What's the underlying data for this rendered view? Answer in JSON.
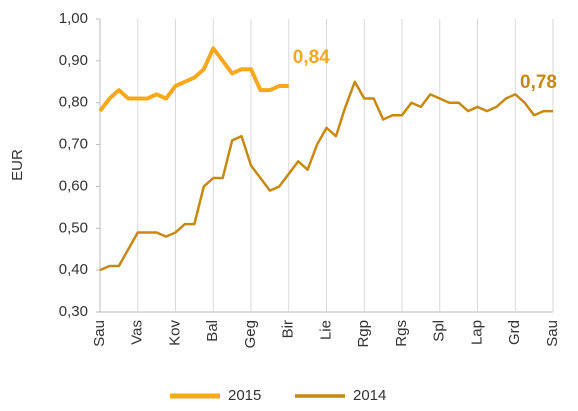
{
  "chart_data": {
    "type": "line",
    "ylabel": "EUR",
    "categories": [
      "Sau",
      null,
      null,
      null,
      "Vas",
      null,
      null,
      null,
      "Kov",
      null,
      null,
      null,
      "Bal",
      null,
      null,
      null,
      "Geg",
      null,
      null,
      null,
      "Bir",
      null,
      null,
      null,
      "Lie",
      null,
      null,
      null,
      "Rgp",
      null,
      null,
      null,
      "Rgs",
      null,
      null,
      null,
      "Spl",
      null,
      null,
      null,
      "Lap",
      null,
      null,
      null,
      "Grd",
      null,
      null,
      null,
      "Sau"
    ],
    "series": [
      {
        "name": "2015",
        "color": "#f7a81b",
        "width": 4,
        "values": [
          0.78,
          0.81,
          0.83,
          0.81,
          0.81,
          0.81,
          0.82,
          0.81,
          0.84,
          0.85,
          0.86,
          0.88,
          0.93,
          0.9,
          0.87,
          0.88,
          0.88,
          0.83,
          0.83,
          0.84,
          0.84,
          null,
          null,
          null,
          null,
          null,
          null,
          null,
          null,
          null,
          null,
          null,
          null,
          null,
          null,
          null,
          null,
          null,
          null,
          null,
          null,
          null,
          null,
          null,
          null,
          null,
          null,
          null,
          null
        ]
      },
      {
        "name": "2014",
        "color": "#c7890f",
        "width": 2.5,
        "values": [
          0.4,
          0.41,
          0.41,
          0.45,
          0.49,
          0.49,
          0.49,
          0.48,
          0.49,
          0.51,
          0.51,
          0.6,
          0.62,
          0.62,
          0.71,
          0.72,
          0.65,
          0.62,
          0.59,
          0.6,
          0.63,
          0.66,
          0.64,
          0.7,
          0.74,
          0.72,
          0.79,
          0.85,
          0.81,
          0.81,
          0.76,
          0.77,
          0.77,
          0.8,
          0.79,
          0.82,
          0.81,
          0.8,
          0.8,
          0.78,
          0.79,
          0.78,
          0.79,
          0.81,
          0.82,
          0.8,
          0.77,
          0.78,
          0.78
        ]
      }
    ],
    "annotations": [
      {
        "text": "0,84",
        "series": 0,
        "index": 20
      },
      {
        "text": "0,78",
        "series": 1,
        "index": 48
      }
    ],
    "ylim": [
      0.3,
      1.0
    ],
    "yticks": [
      {
        "value": 0.3,
        "label": "0,30"
      },
      {
        "value": 0.4,
        "label": "0,40"
      },
      {
        "value": 0.5,
        "label": "0,50"
      },
      {
        "value": 0.6,
        "label": "0,60"
      },
      {
        "value": 0.7,
        "label": "0,70"
      },
      {
        "value": 0.8,
        "label": "0,80"
      },
      {
        "value": 0.9,
        "label": "0,90"
      },
      {
        "value": 1.0,
        "label": "1,00"
      }
    ],
    "grid": "x",
    "legend": "bottom"
  }
}
